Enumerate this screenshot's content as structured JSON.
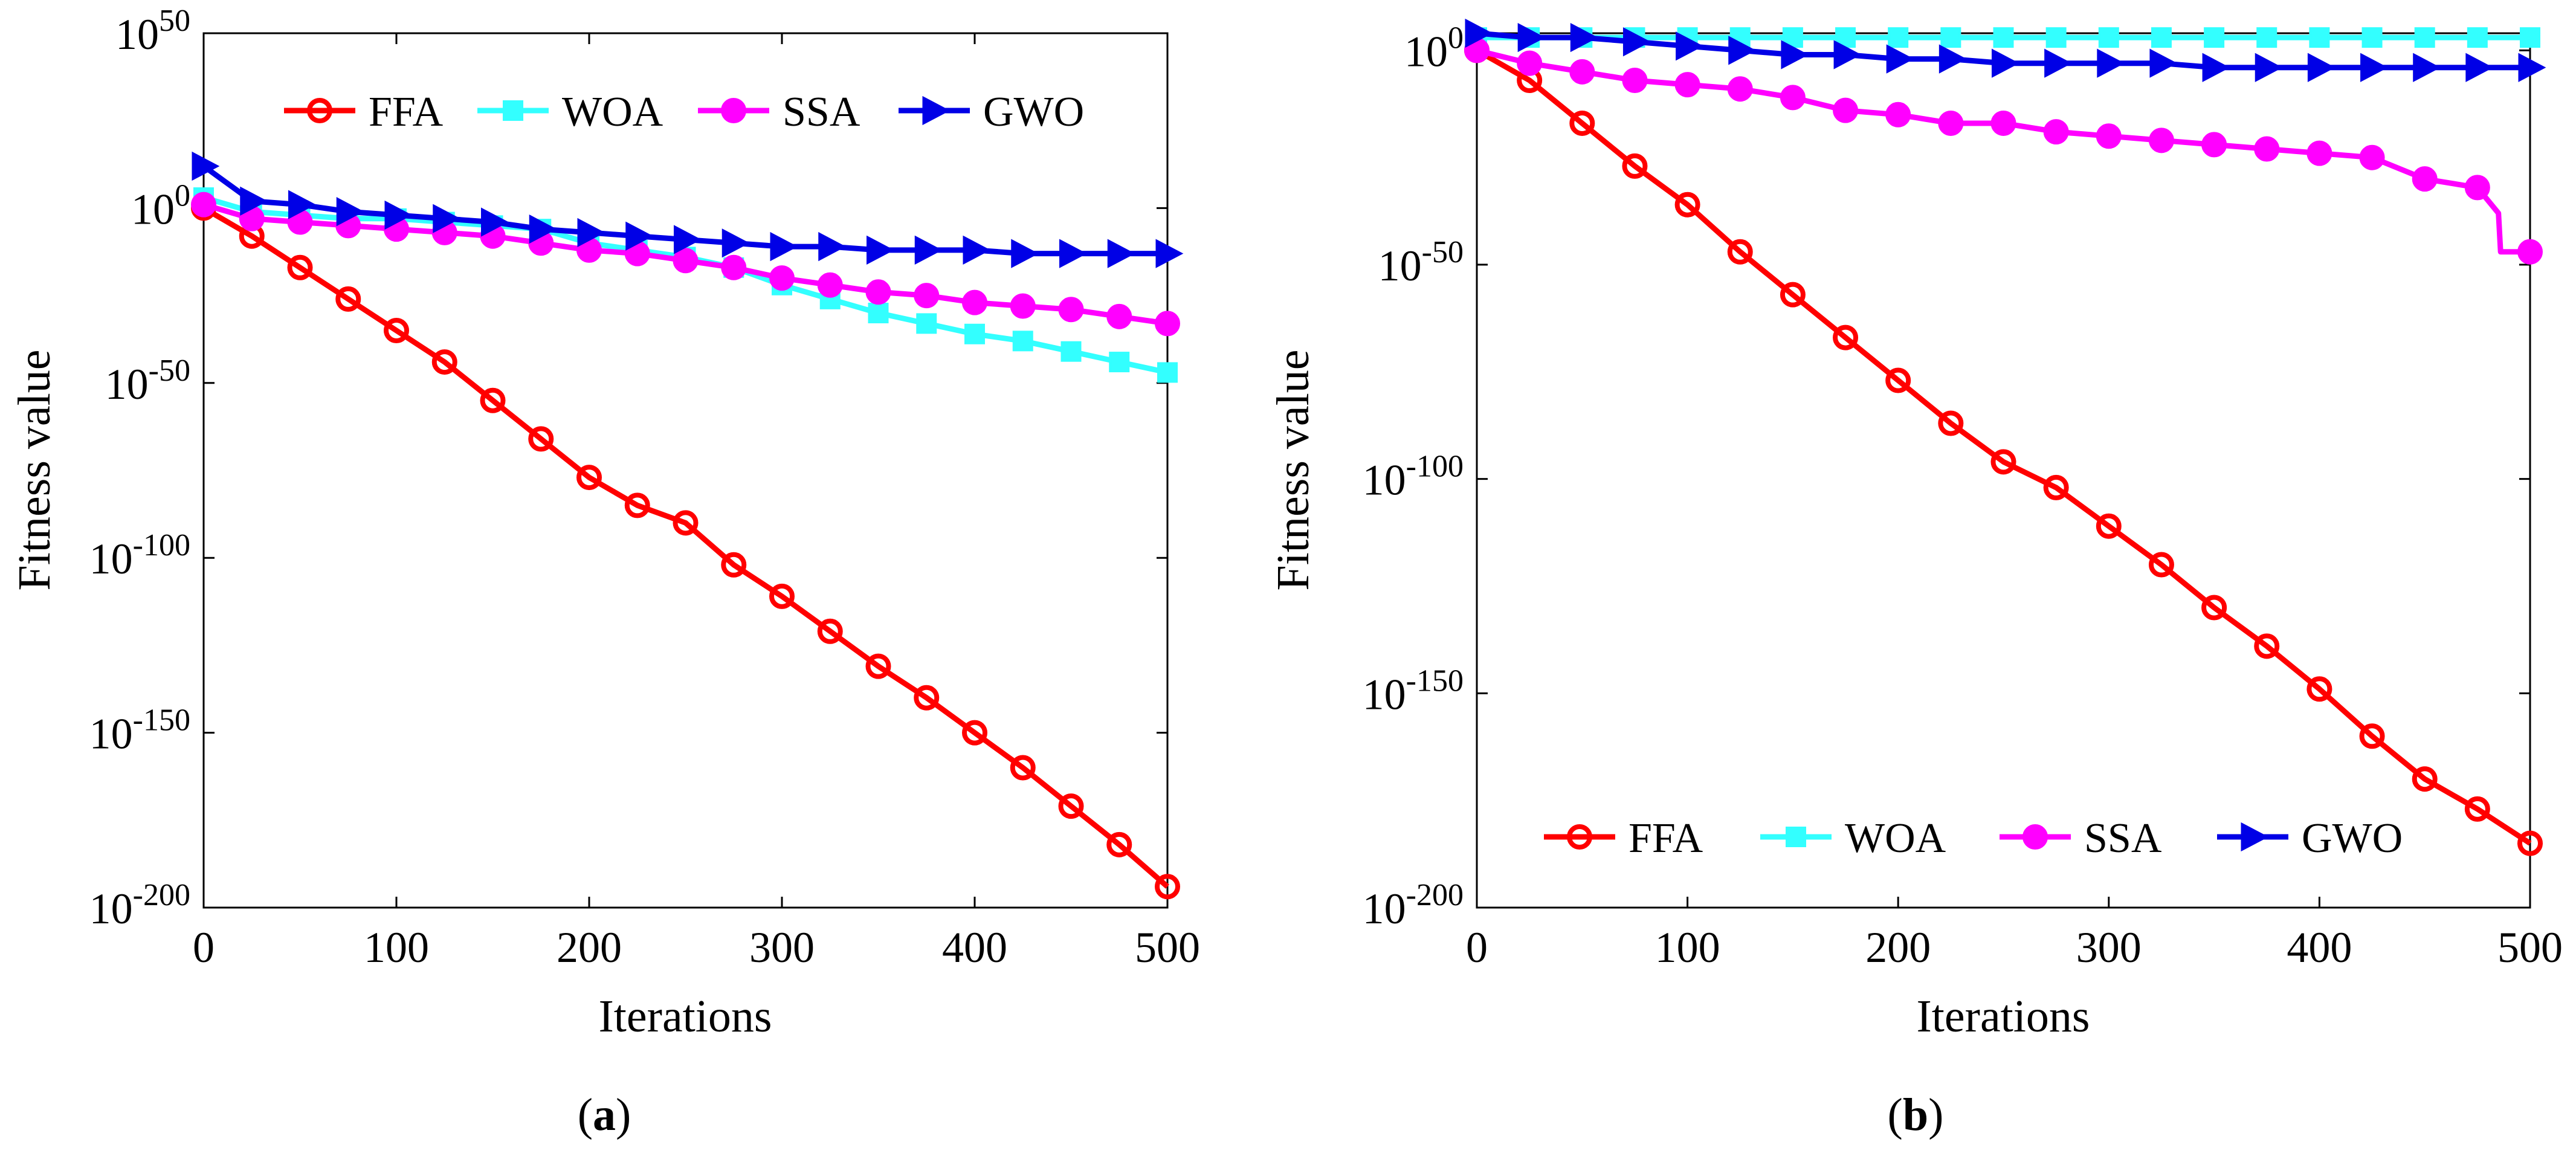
{
  "chart_data": [
    {
      "type": "line",
      "panel_label": "a",
      "caption_open": "(",
      "caption_close": ")",
      "xlabel": "Iterations",
      "ylabel": "Fitness value",
      "x_scale": "linear",
      "y_scale": "log",
      "xlim": [
        0,
        500
      ],
      "ylim_exponent": [
        -200,
        50
      ],
      "xticks": [
        0,
        100,
        200,
        300,
        400,
        500
      ],
      "yticks_exponent": [
        50,
        0,
        -50,
        -100,
        -150,
        -200
      ],
      "grid": false,
      "legend_position": "top",
      "legend_layout": "one row",
      "series": [
        {
          "name": "FFA",
          "color": "#ff0000",
          "marker": "circle",
          "x": [
            0,
            25,
            50,
            75,
            100,
            125,
            150,
            175,
            200,
            225,
            250,
            275,
            300,
            325,
            350,
            375,
            400,
            425,
            450,
            475,
            500
          ],
          "log10_y": [
            0,
            -8,
            -17,
            -26,
            -35,
            -44,
            -55,
            -66,
            -77,
            -85,
            -90,
            -102,
            -111,
            -121,
            -131,
            -140,
            -150,
            -160,
            -171,
            -182,
            -194
          ]
        },
        {
          "name": "WOA",
          "color": "#33ffff",
          "marker": "square",
          "x": [
            0,
            25,
            50,
            75,
            100,
            125,
            150,
            175,
            200,
            225,
            250,
            275,
            300,
            325,
            350,
            375,
            400,
            425,
            450,
            475,
            500
          ],
          "log10_y": [
            3,
            -1,
            -2,
            -3,
            -3,
            -4,
            -5,
            -6,
            -10,
            -12,
            -14,
            -17,
            -22,
            -26,
            -30,
            -33,
            -36,
            -38,
            -41,
            -44,
            -47
          ]
        },
        {
          "name": "SSA",
          "color": "#ff00ff",
          "marker": "circle",
          "x": [
            0,
            25,
            50,
            75,
            100,
            125,
            150,
            175,
            200,
            225,
            250,
            275,
            300,
            325,
            350,
            375,
            400,
            425,
            450,
            475,
            500
          ],
          "log10_y": [
            1,
            -3,
            -4,
            -5,
            -6,
            -7,
            -8,
            -10,
            -12,
            -13,
            -15,
            -17,
            -20,
            -22,
            -24,
            -25,
            -27,
            -28,
            -29,
            -31,
            -33
          ]
        },
        {
          "name": "GWO",
          "color": "#0000e6",
          "marker": "triangle-right",
          "x": [
            0,
            25,
            50,
            75,
            100,
            125,
            150,
            175,
            200,
            225,
            250,
            275,
            300,
            325,
            350,
            375,
            400,
            425,
            450,
            475,
            500
          ],
          "log10_y": [
            12,
            2,
            1,
            -1,
            -2,
            -3,
            -4,
            -6,
            -7,
            -8,
            -9,
            -10,
            -11,
            -11,
            -12,
            -12,
            -12,
            -13,
            -13,
            -13,
            -13
          ]
        }
      ]
    },
    {
      "type": "line",
      "panel_label": "b",
      "caption_open": "(",
      "caption_close": ")",
      "xlabel": "Iterations",
      "ylabel": "Fitness value",
      "x_scale": "linear",
      "y_scale": "log",
      "xlim": [
        0,
        500
      ],
      "ylim_exponent": [
        -200,
        4
      ],
      "xticks": [
        0,
        100,
        200,
        300,
        400,
        500
      ],
      "yticks_exponent": [
        0,
        -50,
        -100,
        -150,
        -200
      ],
      "grid": false,
      "legend_position": "bottom",
      "legend_layout": "one row",
      "series": [
        {
          "name": "FFA",
          "color": "#ff0000",
          "marker": "circle",
          "x": [
            0,
            25,
            50,
            75,
            100,
            125,
            150,
            175,
            200,
            225,
            250,
            275,
            300,
            325,
            350,
            375,
            400,
            425,
            450,
            475,
            500
          ],
          "log10_y": [
            0,
            -7,
            -17,
            -27,
            -36,
            -47,
            -57,
            -67,
            -77,
            -87,
            -96,
            -102,
            -111,
            -120,
            -130,
            -139,
            -149,
            -160,
            -170,
            -177,
            -185
          ]
        },
        {
          "name": "WOA",
          "color": "#33ffff",
          "marker": "square",
          "x": [
            0,
            25,
            50,
            75,
            100,
            125,
            150,
            175,
            200,
            225,
            250,
            275,
            300,
            325,
            350,
            375,
            400,
            425,
            450,
            475,
            500
          ],
          "log10_y": [
            3,
            3,
            3,
            3,
            3,
            3,
            3,
            3,
            3,
            3,
            3,
            3,
            3,
            3,
            3,
            3,
            3,
            3,
            3,
            3,
            3
          ]
        },
        {
          "name": "SSA",
          "color": "#ff00ff",
          "marker": "circle",
          "x": [
            0,
            25,
            50,
            75,
            100,
            125,
            150,
            175,
            200,
            225,
            250,
            275,
            300,
            325,
            350,
            375,
            400,
            425,
            450,
            475,
            485,
            486,
            500
          ],
          "log10_y": [
            0,
            -3,
            -5,
            -7,
            -8,
            -9,
            -11,
            -14,
            -15,
            -17,
            -17,
            -19,
            -20,
            -21,
            -22,
            -23,
            -24,
            -25,
            -30,
            -32,
            -38,
            -47,
            -47
          ]
        },
        {
          "name": "GWO",
          "color": "#0000e6",
          "marker": "triangle-right",
          "x": [
            0,
            25,
            50,
            75,
            100,
            125,
            150,
            175,
            200,
            225,
            250,
            275,
            300,
            325,
            350,
            375,
            400,
            425,
            450,
            475,
            500
          ],
          "log10_y": [
            4,
            3,
            3,
            2,
            1,
            0,
            -1,
            -1,
            -2,
            -2,
            -3,
            -3,
            -3,
            -3,
            -4,
            -4,
            -4,
            -4,
            -4,
            -4,
            -4
          ]
        }
      ]
    }
  ]
}
